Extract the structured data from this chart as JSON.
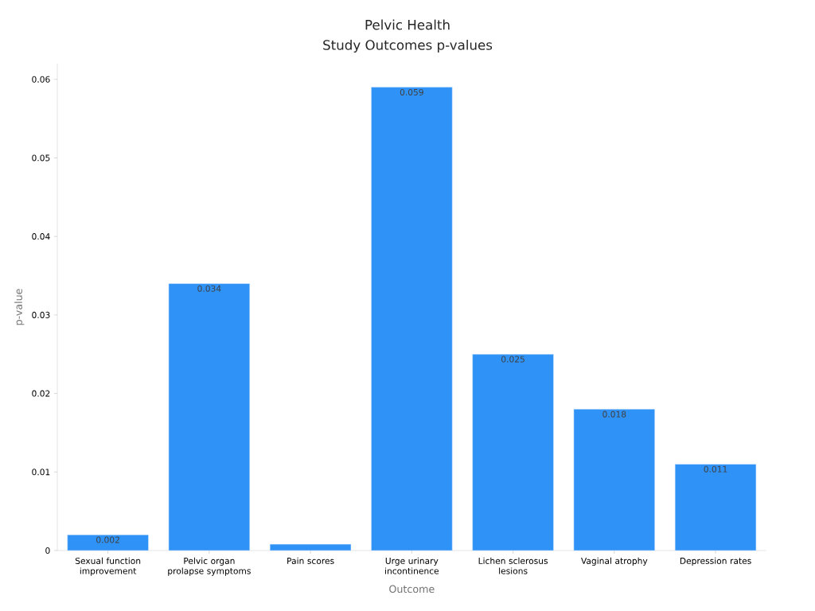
{
  "chart_data": {
    "type": "bar",
    "title": "Pelvic Health",
    "subtitle": "Study Outcomes p-values",
    "xlabel": "Outcome",
    "ylabel": "p-value",
    "categories": [
      "Sexual function improvement",
      "Pelvic organ prolapse symptoms",
      "Pain scores",
      "Urge urinary incontinence",
      "Lichen sclerosus lesions",
      "Vaginal atrophy",
      "Depression rates"
    ],
    "values": [
      0.002,
      0.034,
      0.0008,
      0.059,
      0.025,
      0.018,
      0.011
    ],
    "value_labels": [
      "0.002",
      "0.034",
      null,
      "0.059",
      "0.025",
      "0.018",
      "0.011"
    ],
    "color": "#2f92f7",
    "ylim": [
      0,
      0.062
    ],
    "yticks": [
      0,
      0.01,
      0.02,
      0.03,
      0.04,
      0.05,
      0.06
    ],
    "grid": false
  }
}
